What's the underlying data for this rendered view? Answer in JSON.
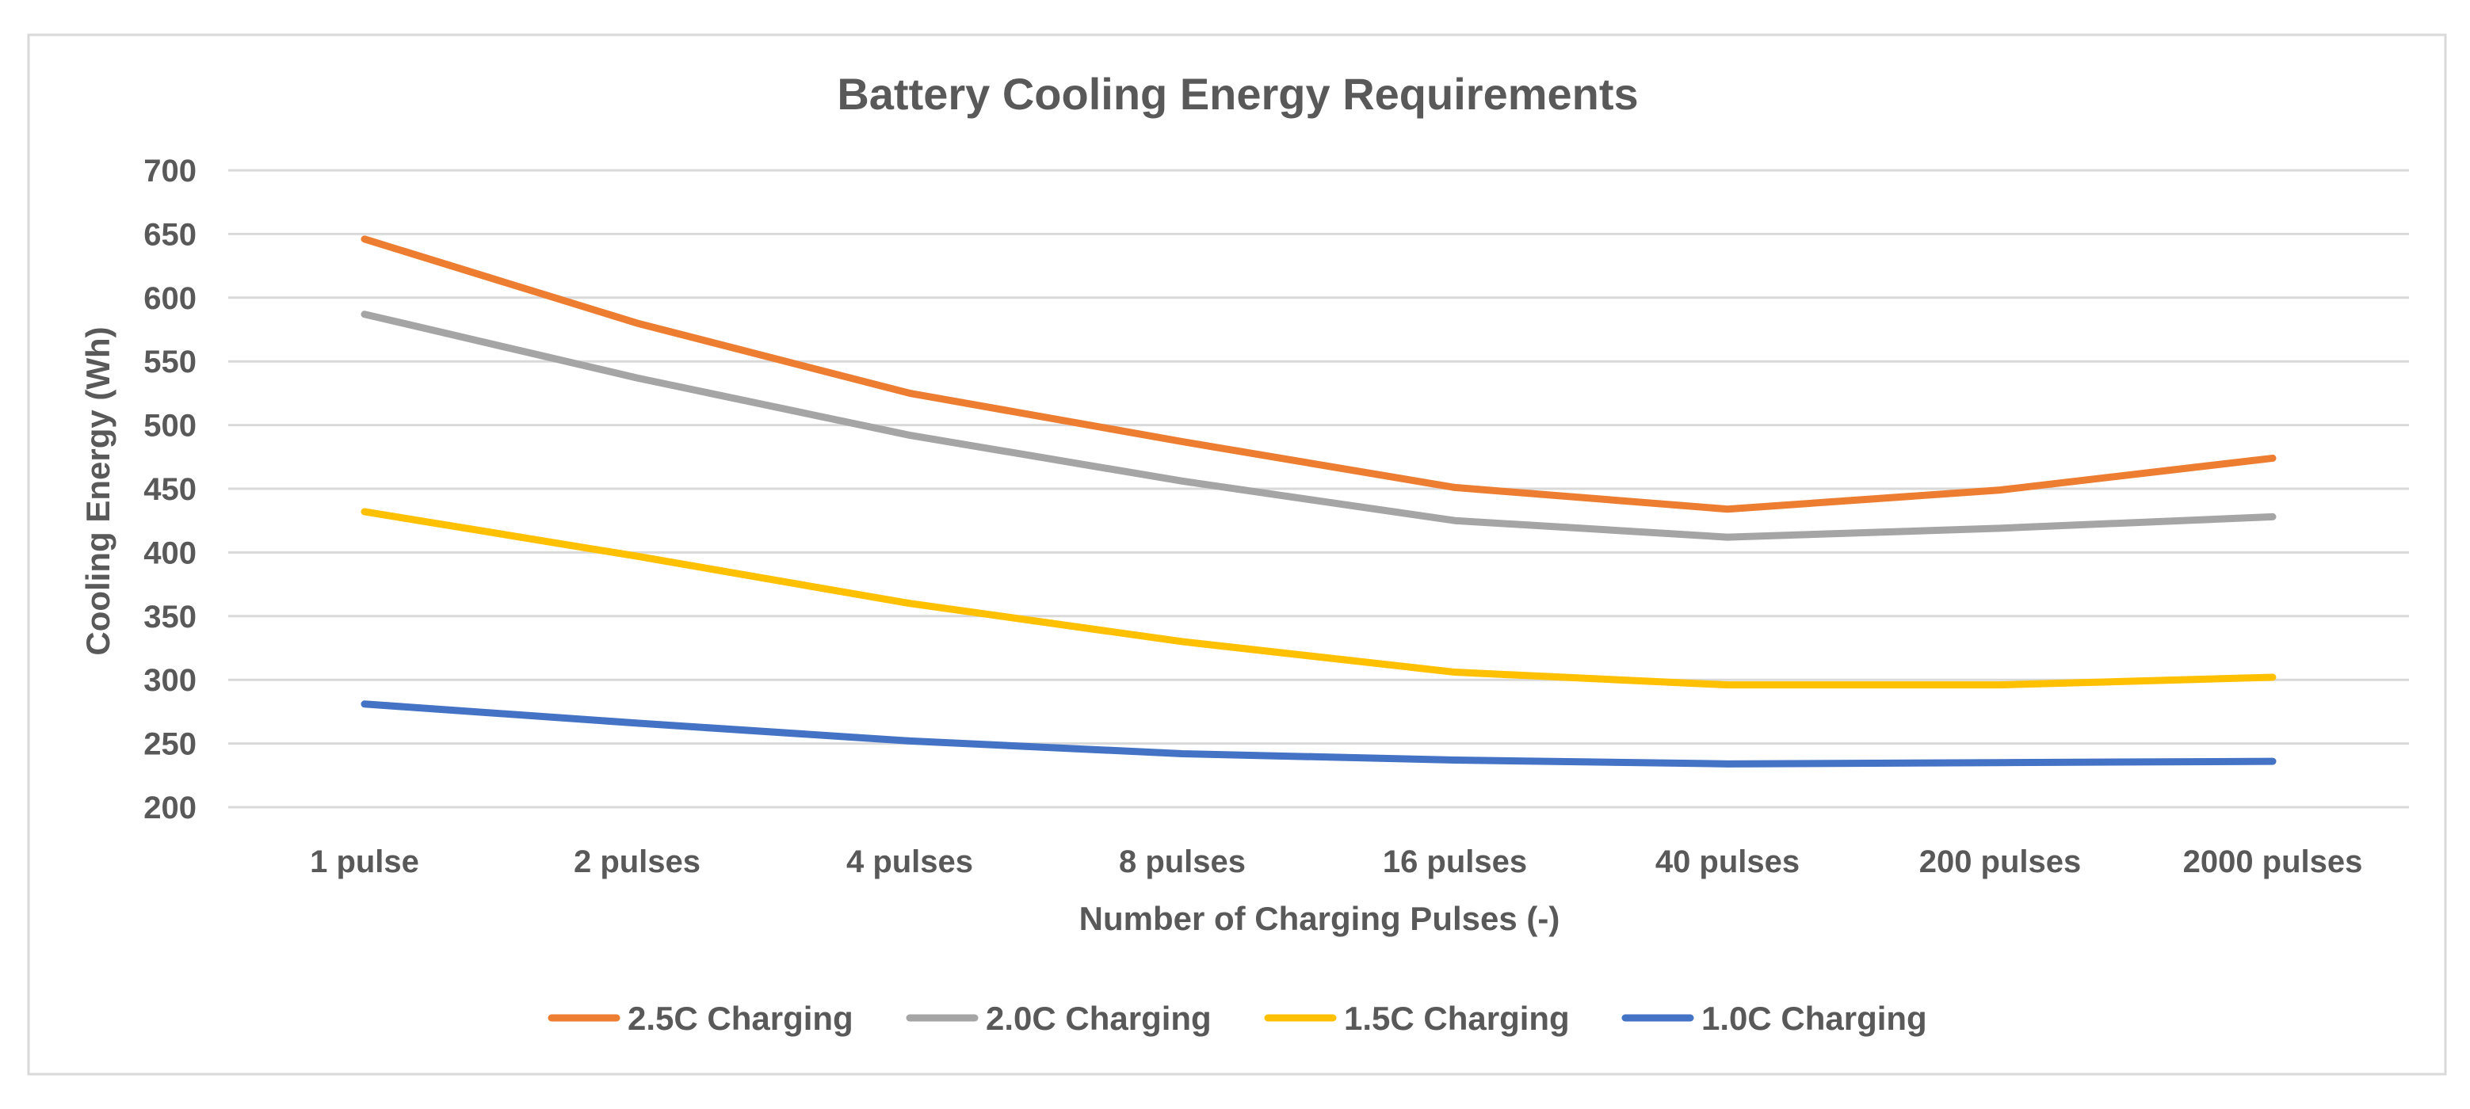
{
  "chart_data": {
    "type": "line",
    "title": "Battery Cooling Energy Requirements",
    "xlabel": "Number of Charging Pulses (-)",
    "ylabel": "Cooling Energy (Wh)",
    "categories": [
      "1 pulse",
      "2 pulses",
      "4 pulses",
      "8 pulses",
      "16 pulses",
      "40 pulses",
      "200 pulses",
      "2000 pulses"
    ],
    "ylim": [
      200,
      700
    ],
    "yticks": [
      200,
      250,
      300,
      350,
      400,
      450,
      500,
      550,
      600,
      650,
      700
    ],
    "grid": true,
    "legend_position": "bottom",
    "series": [
      {
        "name": "2.5C Charging",
        "color": "#ED7D31",
        "values": [
          646,
          580,
          525,
          487,
          451,
          434,
          449,
          474
        ]
      },
      {
        "name": "2.0C Charging",
        "color": "#A5A5A5",
        "values": [
          587,
          537,
          492,
          456,
          425,
          412,
          419,
          428
        ]
      },
      {
        "name": "1.5C Charging",
        "color": "#FFC000",
        "values": [
          432,
          397,
          360,
          330,
          306,
          296,
          296,
          302
        ]
      },
      {
        "name": "1.0C Charging",
        "color": "#4472C4",
        "values": [
          281,
          266,
          252,
          242,
          237,
          234,
          235,
          236
        ]
      }
    ]
  }
}
